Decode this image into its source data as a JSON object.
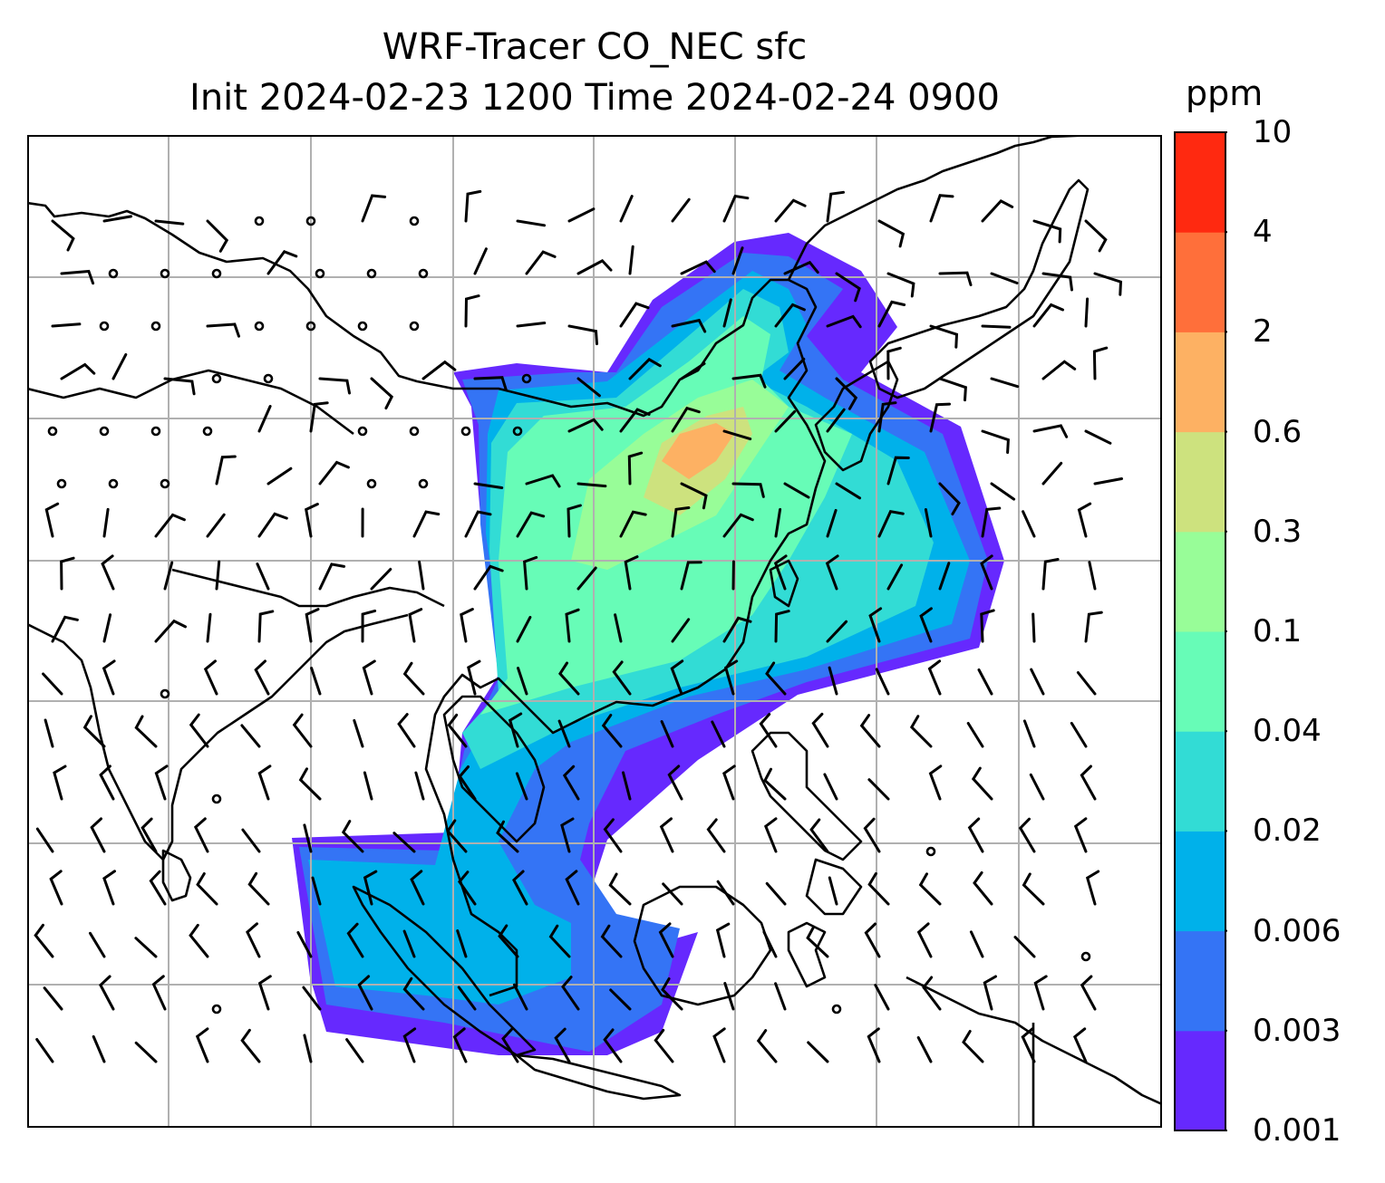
{
  "title_line1": "WRF-Tracer CO_NEC sfc",
  "title_line2": "Init 2024-02-23 1200 Time 2024-02-24 0900",
  "colorbar": {
    "unit": "ppm",
    "tick_labels": [
      "0.001",
      "0.003",
      "0.006",
      "0.02",
      "0.04",
      "0.1",
      "0.3",
      "0.6",
      "2",
      "4",
      "10"
    ],
    "level_colors": [
      "#6629fe",
      "#3474f5",
      "#00b1ea",
      "#32dcd5",
      "#67fcb7",
      "#98fd98",
      "#cde27e",
      "#fdb163",
      "#ff6f3a",
      "#ff2910"
    ]
  },
  "map": {
    "variable": "CO_NEC surface tracer concentration",
    "background": "#ffffff",
    "coastline_color": "#000000",
    "gridline_color": "#b0b0b0",
    "wind_barb_color": "#000000"
  }
}
